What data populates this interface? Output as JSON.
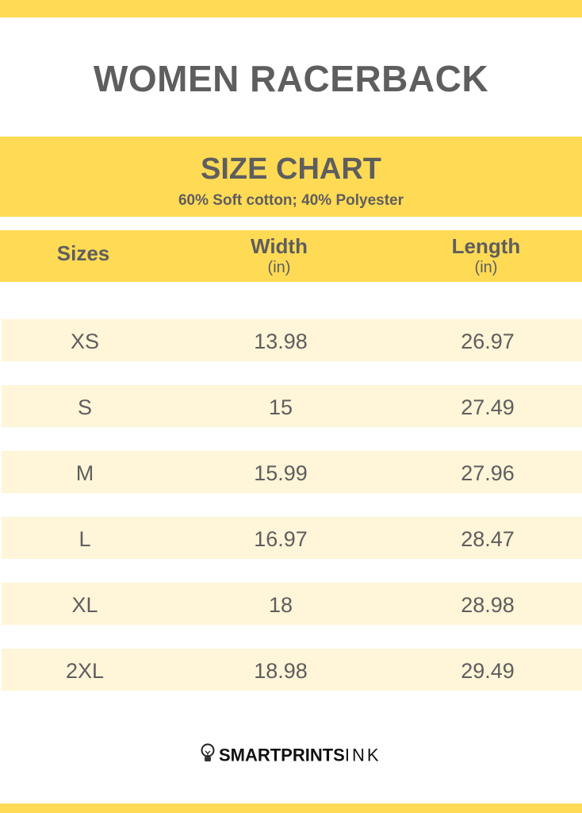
{
  "title": "WOMEN RACERBACK",
  "chart_header": {
    "title": "SIZE CHART",
    "subtitle": "60% Soft cotton; 40% Polyester"
  },
  "columns": [
    {
      "label": "Sizes",
      "unit": ""
    },
    {
      "label": "Width",
      "unit": "(in)"
    },
    {
      "label": "Length",
      "unit": "(in)"
    }
  ],
  "rows": [
    {
      "size": "XS",
      "width": "13.98",
      "length": "26.97"
    },
    {
      "size": "S",
      "width": "15",
      "length": "27.49"
    },
    {
      "size": "M",
      "width": "15.99",
      "length": "27.96"
    },
    {
      "size": "L",
      "width": "16.97",
      "length": "28.47"
    },
    {
      "size": "XL",
      "width": "18",
      "length": "28.98"
    },
    {
      "size": "2XL",
      "width": "18.98",
      "length": "29.49"
    }
  ],
  "logo": {
    "bold": "SMARTPRINTS",
    "light": "INK",
    "icon": "lightbulb-icon"
  },
  "colors": {
    "accent": "#FFDA55",
    "row_bg": "#FFF5D8",
    "text": "#5e5e5e"
  }
}
